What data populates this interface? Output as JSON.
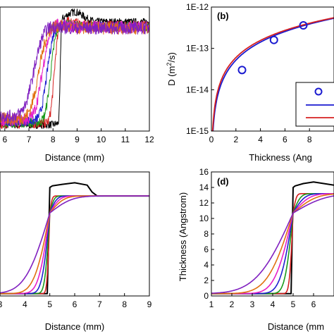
{
  "chart_data": [
    {
      "panel": "a",
      "type": "line",
      "panel_label": "",
      "xlabel": "Distance (mm)",
      "ylabel": "",
      "xlim": [
        5.8,
        12
      ],
      "xticks": [
        "6",
        "7",
        "8",
        "9",
        "10",
        "11",
        "12"
      ],
      "xtick_values": [
        6,
        7,
        8,
        9,
        10,
        11,
        12
      ],
      "ylim": [
        0,
        1
      ],
      "series": [
        {
          "color": "#000000",
          "step_x": 8.3,
          "w": 0.05,
          "base": 0.05,
          "top": 0.88,
          "noise": 0.03,
          "overshoot": 0.08
        },
        {
          "color": "#d62020",
          "step_x": 8.05,
          "w": 0.18,
          "base": 0.06,
          "top": 0.85,
          "noise": 0.04,
          "overshoot": 0.03
        },
        {
          "color": "#1a9a1a",
          "step_x": 7.9,
          "w": 0.25,
          "base": 0.07,
          "top": 0.84,
          "noise": 0.04,
          "overshoot": 0.02
        },
        {
          "color": "#2020d0",
          "step_x": 7.75,
          "w": 0.3,
          "base": 0.08,
          "top": 0.84,
          "noise": 0.04,
          "overshoot": 0.02
        },
        {
          "color": "#e61ec8",
          "step_x": 7.55,
          "w": 0.35,
          "base": 0.09,
          "top": 0.84,
          "noise": 0.05,
          "overshoot": 0.02
        },
        {
          "color": "#e07010",
          "step_x": 7.4,
          "w": 0.4,
          "base": 0.1,
          "top": 0.83,
          "noise": 0.05,
          "overshoot": 0.02
        },
        {
          "color": "#8020c0",
          "step_x": 7.2,
          "w": 0.45,
          "base": 0.12,
          "top": 0.83,
          "noise": 0.05,
          "overshoot": 0.02
        }
      ]
    },
    {
      "panel": "b",
      "type": "line",
      "panel_label": "(b)",
      "xlabel": "Thickness (Ang",
      "ylabel": "D (m²/s)",
      "ylabel_main": "D (m",
      "ylabel_sup": "2",
      "ylabel_tail": "/s)",
      "xlim": [
        0,
        10
      ],
      "xticks": [
        "0",
        "2",
        "4",
        "6",
        "8"
      ],
      "xtick_values": [
        0,
        2,
        4,
        6,
        8
      ],
      "ylog": true,
      "ylim": [
        1e-15,
        1e-12
      ],
      "yticks": [
        "1E-15",
        "1E-14",
        "1E-13",
        "1E-12"
      ],
      "ytick_values": [
        1e-15,
        1e-14,
        1e-13,
        1e-12
      ],
      "points": {
        "x": [
          2.5,
          5.1,
          7.5
        ],
        "y": [
          3e-14,
          1.6e-13,
          3.6e-13
        ],
        "color": "#1a1ad0"
      },
      "curves": [
        {
          "color": "#1a1ad0",
          "a": 1.9e-14,
          "p": 1.45
        },
        {
          "color": "#d62020",
          "a": 2.3e-14,
          "p": 1.38
        }
      ]
    },
    {
      "panel": "c",
      "type": "line",
      "panel_label": "",
      "xlabel": "Distance (mm)",
      "ylabel": "",
      "xlim": [
        3,
        9
      ],
      "xticks": [
        "3",
        "4",
        "5",
        "6",
        "7",
        "8",
        "9"
      ],
      "xtick_values": [
        3,
        4,
        5,
        6,
        7,
        8,
        9
      ],
      "ylim": [
        0,
        16
      ],
      "black_profile": {
        "x": [
          3,
          4.9,
          5.0,
          5.1,
          5.5,
          6.0,
          6.5,
          6.7,
          6.9,
          9
        ],
        "y": [
          0.3,
          0.3,
          14.0,
          14.2,
          14.4,
          14.6,
          14.3,
          13.4,
          12.9,
          12.9
        ],
        "color": "#000000"
      },
      "series": [
        {
          "color": "#d62020",
          "w": 0.12
        },
        {
          "color": "#1a9a1a",
          "w": 0.22
        },
        {
          "color": "#2020d0",
          "w": 0.35
        },
        {
          "color": "#e61ec8",
          "w": 0.5
        },
        {
          "color": "#e07010",
          "w": 0.7
        },
        {
          "color": "#8020c0",
          "w": 1.1
        }
      ]
    },
    {
      "panel": "d",
      "type": "line",
      "panel_label": "(d)",
      "xlabel": "Distance (mm",
      "ylabel": "Thickness (Angstrom)",
      "xlim": [
        1,
        7
      ],
      "xticks": [
        "1",
        "2",
        "3",
        "4",
        "5",
        "6"
      ],
      "xtick_values": [
        1,
        2,
        3,
        4,
        5,
        6
      ],
      "ylim": [
        0,
        16
      ],
      "yticks": [
        "0",
        "2",
        "4",
        "6",
        "8",
        "10",
        "12",
        "14",
        "16"
      ],
      "ytick_values": [
        0,
        2,
        4,
        6,
        8,
        10,
        12,
        14,
        16
      ],
      "black_profile": {
        "x": [
          1,
          4.9,
          5.0,
          5.1,
          5.5,
          6.0,
          6.5,
          7.0
        ],
        "y": [
          0.3,
          0.3,
          14.0,
          14.2,
          14.5,
          14.7,
          14.5,
          14.3
        ],
        "color": "#000000"
      },
      "series": [
        {
          "color": "#d62020",
          "w": 0.2
        },
        {
          "color": "#1a9a1a",
          "w": 0.45
        },
        {
          "color": "#2020d0",
          "w": 0.7
        },
        {
          "color": "#e61ec8",
          "w": 1.0
        },
        {
          "color": "#e07010",
          "w": 1.4
        },
        {
          "color": "#8020c0",
          "w": 2.0
        }
      ]
    }
  ]
}
